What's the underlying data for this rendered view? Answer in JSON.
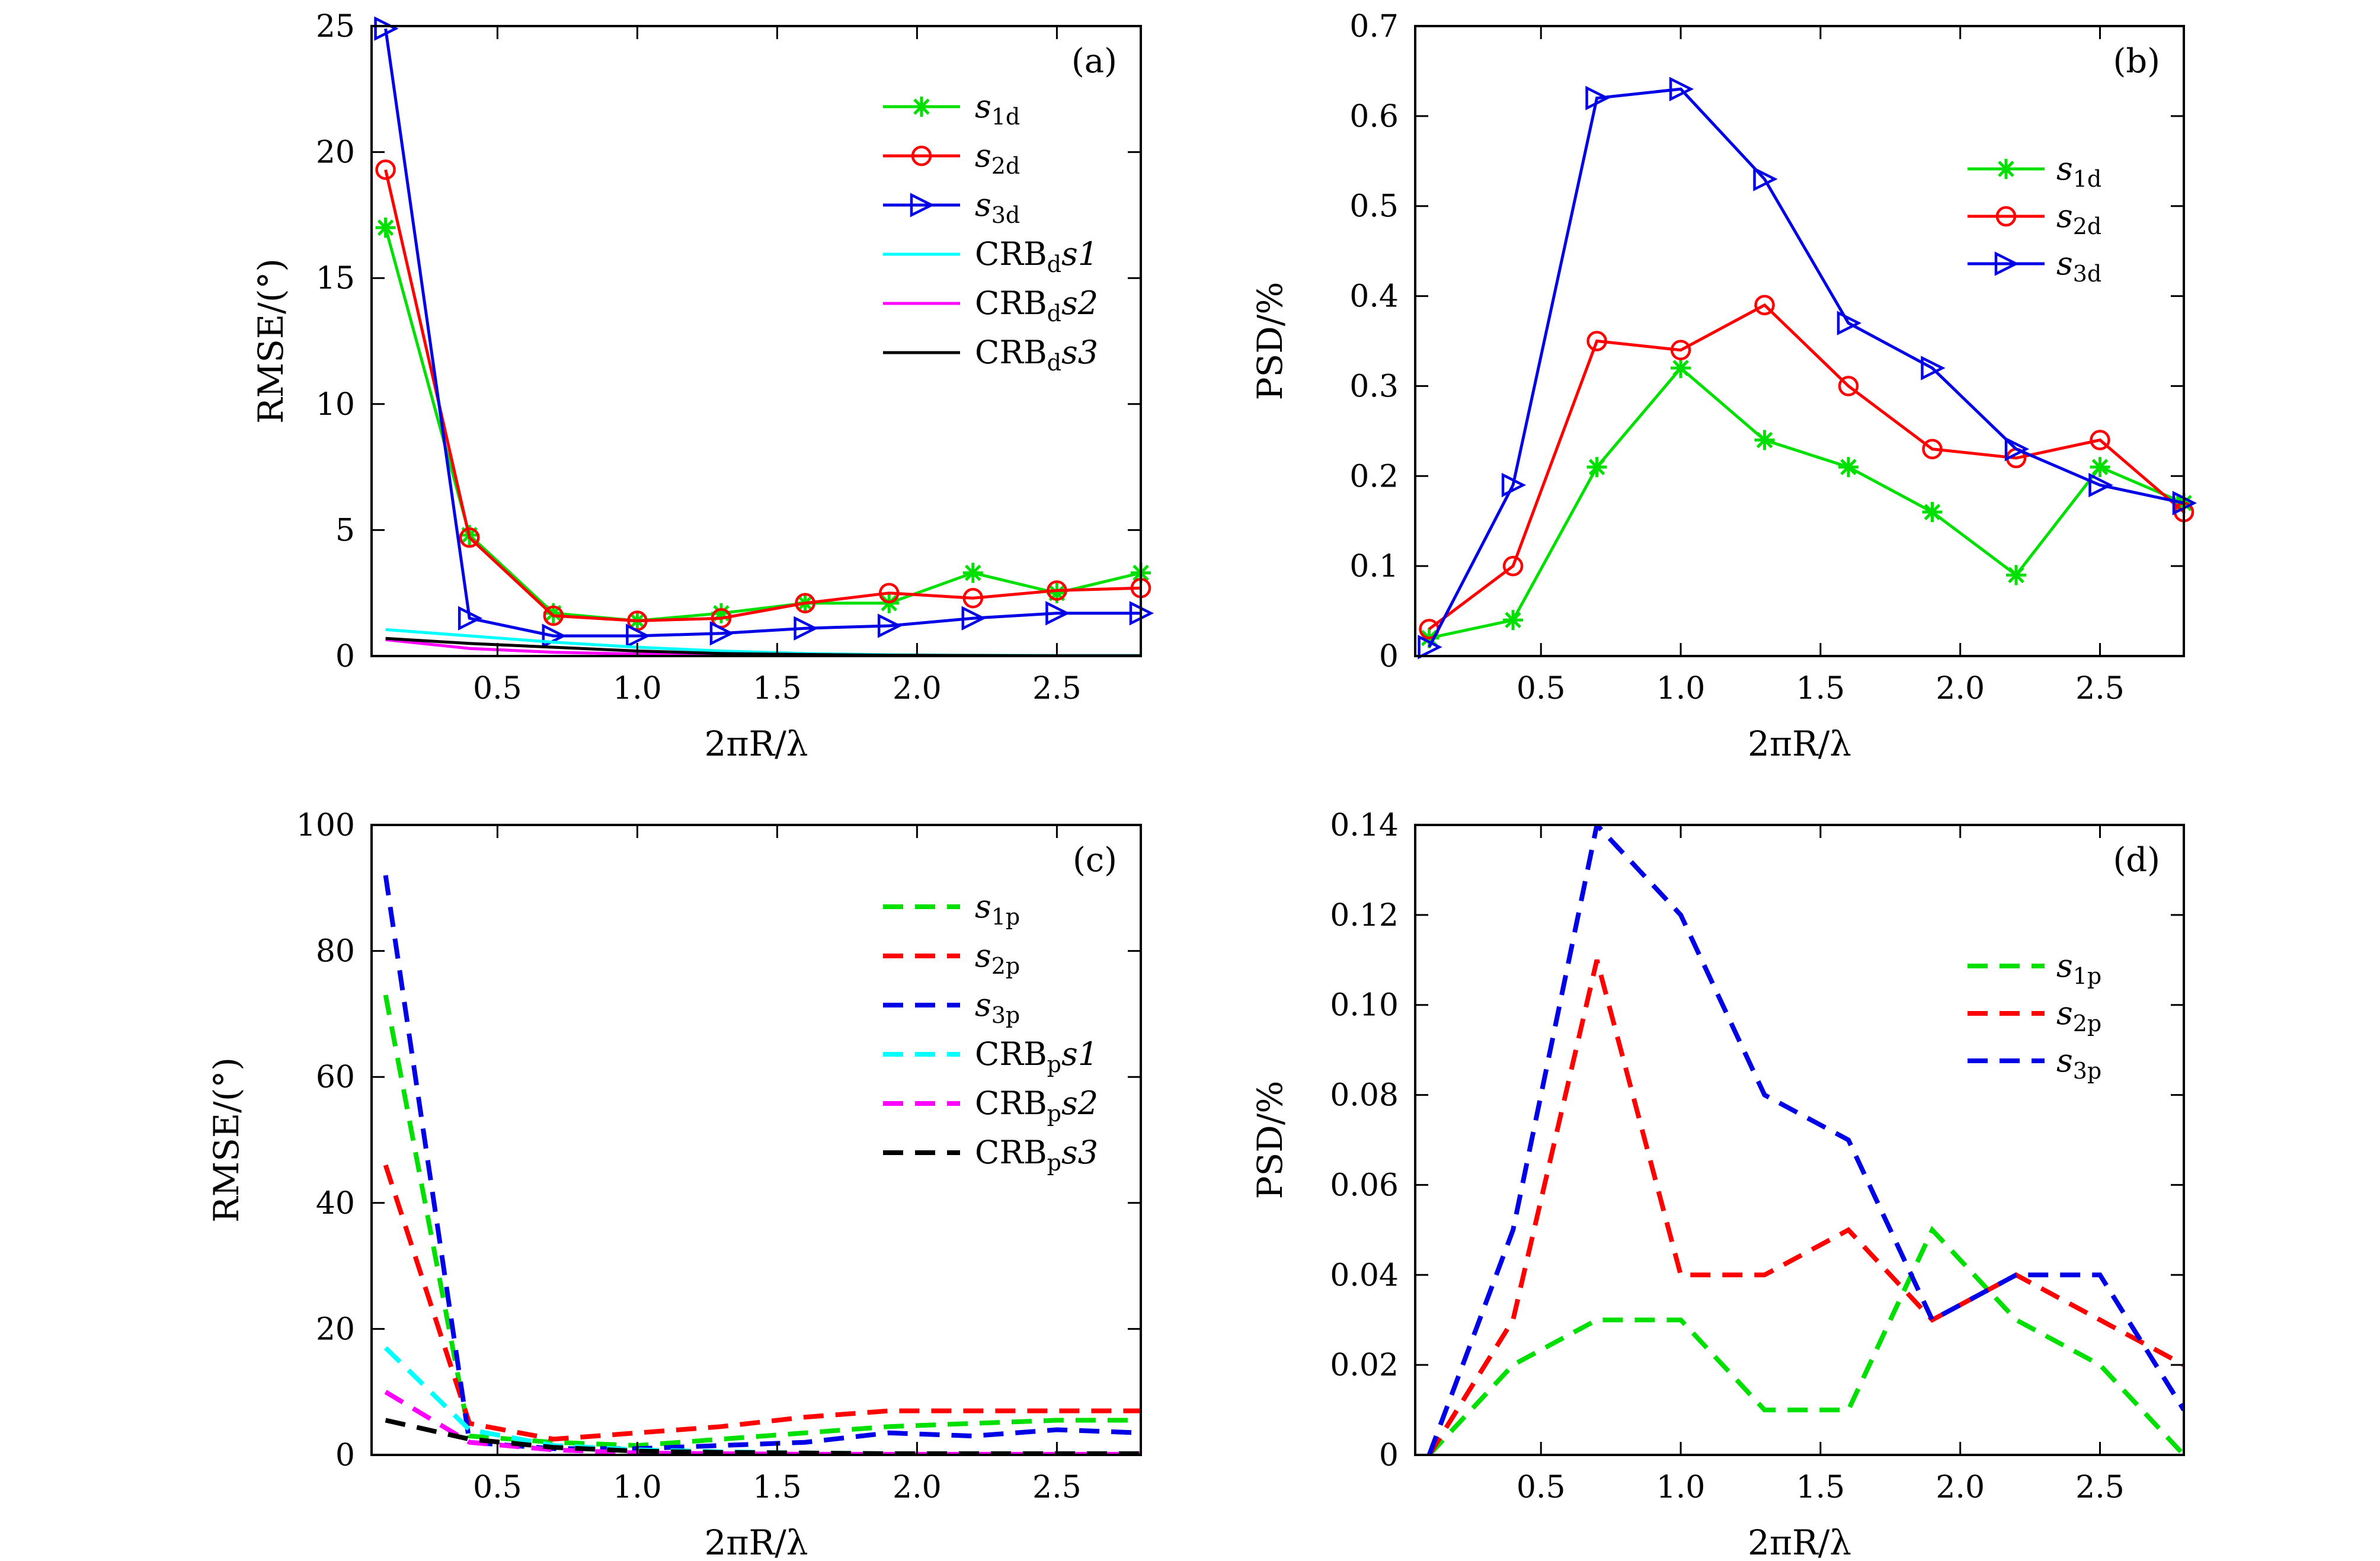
{
  "chart_data": [
    {
      "panel": "(a)",
      "type": "line",
      "xlabel": "2πR/λ",
      "ylabel": "RMSE/(°)",
      "xlim": [
        0.05,
        2.8
      ],
      "ylim": [
        0,
        25
      ],
      "xticks": [
        "0.5",
        "1.0",
        "1.5",
        "2.0",
        "2.5"
      ],
      "xtick_values": [
        0.5,
        1.0,
        1.5,
        2.0,
        2.5
      ],
      "yticks": [
        "0",
        "5",
        "10",
        "15",
        "20",
        "25"
      ],
      "ytick_values": [
        0,
        5,
        10,
        15,
        20,
        25
      ],
      "x": [
        0.1,
        0.4,
        0.7,
        1.0,
        1.3,
        1.6,
        1.9,
        2.2,
        2.5,
        2.8
      ],
      "legend_position": "top-right",
      "series": [
        {
          "name": "s1d",
          "label_main": "s",
          "label_sub": "1d",
          "italic": true,
          "color": "#00e000",
          "marker": "star",
          "dash": false,
          "values": [
            17.0,
            4.8,
            1.7,
            1.4,
            1.7,
            2.1,
            2.1,
            3.3,
            2.5,
            3.3
          ]
        },
        {
          "name": "s2d",
          "label_main": "s",
          "label_sub": "2d",
          "italic": true,
          "color": "#ff0000",
          "marker": "circle",
          "dash": false,
          "values": [
            19.3,
            4.7,
            1.6,
            1.4,
            1.5,
            2.1,
            2.5,
            2.3,
            2.6,
            2.7
          ]
        },
        {
          "name": "s3d",
          "label_main": "s",
          "label_sub": "3d",
          "italic": true,
          "color": "#0000e6",
          "marker": "triangle",
          "dash": false,
          "values": [
            24.9,
            1.5,
            0.8,
            0.8,
            0.9,
            1.1,
            1.2,
            1.5,
            1.7,
            1.7
          ]
        },
        {
          "name": "CRBds1",
          "label_main": "CRB",
          "label_sub": "d",
          "label_tail": "s1",
          "italic": false,
          "color": "#00ffff",
          "marker": "none",
          "dash": false,
          "values": [
            1.05,
            0.8,
            0.55,
            0.35,
            0.2,
            0.1,
            0.05,
            0.03,
            0.02,
            0.02
          ]
        },
        {
          "name": "CRBds2",
          "label_main": "CRB",
          "label_sub": "d",
          "label_tail": "s2",
          "italic": false,
          "color": "#ff00ff",
          "marker": "none",
          "dash": false,
          "values": [
            0.65,
            0.3,
            0.15,
            0.08,
            0.05,
            0.03,
            0.02,
            0.01,
            0.01,
            0.01
          ]
        },
        {
          "name": "CRBds3",
          "label_main": "CRB",
          "label_sub": "d",
          "label_tail": "s3",
          "italic": false,
          "color": "#000000",
          "marker": "none",
          "dash": false,
          "values": [
            0.7,
            0.5,
            0.35,
            0.2,
            0.1,
            0.06,
            0.03,
            0.02,
            0.01,
            0.01
          ]
        }
      ]
    },
    {
      "panel": "(b)",
      "type": "line",
      "xlabel": "2πR/λ",
      "ylabel": "PSD/%",
      "xlim": [
        0.05,
        2.8
      ],
      "ylim": [
        0,
        0.7
      ],
      "xticks": [
        "0.5",
        "1.0",
        "1.5",
        "2.0",
        "2.5"
      ],
      "xtick_values": [
        0.5,
        1.0,
        1.5,
        2.0,
        2.5
      ],
      "yticks": [
        "0",
        "0.1",
        "0.2",
        "0.3",
        "0.4",
        "0.5",
        "0.6",
        "0.7"
      ],
      "ytick_values": [
        0,
        0.1,
        0.2,
        0.3,
        0.4,
        0.5,
        0.6,
        0.7
      ],
      "x": [
        0.1,
        0.4,
        0.7,
        1.0,
        1.3,
        1.6,
        1.9,
        2.2,
        2.5,
        2.8
      ],
      "legend_position": "top-right",
      "series": [
        {
          "name": "s1d",
          "label_main": "s",
          "label_sub": "1d",
          "italic": true,
          "color": "#00e000",
          "marker": "star",
          "dash": false,
          "values": [
            0.02,
            0.04,
            0.21,
            0.32,
            0.24,
            0.21,
            0.16,
            0.09,
            0.21,
            0.17
          ]
        },
        {
          "name": "s2d",
          "label_main": "s",
          "label_sub": "2d",
          "italic": true,
          "color": "#ff0000",
          "marker": "circle",
          "dash": false,
          "values": [
            0.03,
            0.1,
            0.35,
            0.34,
            0.39,
            0.3,
            0.23,
            0.22,
            0.24,
            0.16
          ]
        },
        {
          "name": "s3d",
          "label_main": "s",
          "label_sub": "3d",
          "italic": true,
          "color": "#0000e6",
          "marker": "triangle",
          "dash": false,
          "values": [
            0.01,
            0.19,
            0.62,
            0.63,
            0.53,
            0.37,
            0.32,
            0.23,
            0.19,
            0.17
          ]
        }
      ]
    },
    {
      "panel": "(c)",
      "type": "line",
      "xlabel": "2πR/λ",
      "ylabel": "RMSE/(°)",
      "xlim": [
        0.05,
        2.8
      ],
      "ylim": [
        0,
        100
      ],
      "xticks": [
        "0.5",
        "1.0",
        "1.5",
        "2.0",
        "2.5"
      ],
      "xtick_values": [
        0.5,
        1.0,
        1.5,
        2.0,
        2.5
      ],
      "yticks": [
        "0",
        "20",
        "40",
        "60",
        "80",
        "100"
      ],
      "ytick_values": [
        0,
        20,
        40,
        60,
        80,
        100
      ],
      "x": [
        0.1,
        0.4,
        0.7,
        1.0,
        1.3,
        1.6,
        1.9,
        2.2,
        2.5,
        2.8
      ],
      "legend_position": "top-right",
      "series": [
        {
          "name": "s1p",
          "label_main": "s",
          "label_sub": "1p",
          "italic": true,
          "color": "#00e000",
          "marker": "none",
          "dash": true,
          "values": [
            73,
            3,
            2,
            1.5,
            2.5,
            3.5,
            4.5,
            5,
            5.5,
            5.5
          ]
        },
        {
          "name": "s2p",
          "label_main": "s",
          "label_sub": "2p",
          "italic": true,
          "color": "#ff0000",
          "marker": "none",
          "dash": true,
          "values": [
            46,
            5,
            2.5,
            3.5,
            4.5,
            6,
            7,
            7,
            7,
            7
          ]
        },
        {
          "name": "s3p",
          "label_main": "s",
          "label_sub": "3p",
          "italic": true,
          "color": "#0000e6",
          "marker": "none",
          "dash": true,
          "values": [
            92,
            2,
            1,
            1,
            1.5,
            2,
            3.5,
            3,
            4,
            3.5
          ]
        },
        {
          "name": "CRBps1",
          "label_main": "CRB",
          "label_sub": "p",
          "label_tail": "s1",
          "italic": false,
          "color": "#00ffff",
          "marker": "none",
          "dash": true,
          "values": [
            17,
            4,
            1.5,
            0.8,
            0.5,
            0.3,
            0.2,
            0.2,
            0.2,
            0.2
          ]
        },
        {
          "name": "CRBps2",
          "label_main": "CRB",
          "label_sub": "p",
          "label_tail": "s2",
          "italic": false,
          "color": "#ff00ff",
          "marker": "none",
          "dash": true,
          "values": [
            10,
            2,
            0.8,
            0.3,
            0.2,
            0.1,
            0.1,
            0.1,
            0.1,
            0.1
          ]
        },
        {
          "name": "CRBps3",
          "label_main": "CRB",
          "label_sub": "p",
          "label_tail": "s3",
          "italic": false,
          "color": "#000000",
          "marker": "none",
          "dash": true,
          "values": [
            5.5,
            2.5,
            1.2,
            0.6,
            0.4,
            0.3,
            0.2,
            0.2,
            0.2,
            0.2
          ]
        }
      ]
    },
    {
      "panel": "(d)",
      "type": "line",
      "xlabel": "2πR/λ",
      "ylabel": "PSD/%",
      "xlim": [
        0.05,
        2.8
      ],
      "ylim": [
        0,
        0.14
      ],
      "xticks": [
        "0.5",
        "1.0",
        "1.5",
        "2.0",
        "2.5"
      ],
      "xtick_values": [
        0.5,
        1.0,
        1.5,
        2.0,
        2.5
      ],
      "yticks": [
        "0",
        "0.02",
        "0.04",
        "0.06",
        "0.08",
        "0.10",
        "0.12",
        "0.14"
      ],
      "ytick_values": [
        0,
        0.02,
        0.04,
        0.06,
        0.08,
        0.1,
        0.12,
        0.14
      ],
      "x": [
        0.1,
        0.4,
        0.7,
        1.0,
        1.3,
        1.6,
        1.9,
        2.2,
        2.5,
        2.8
      ],
      "legend_position": "top-right",
      "series": [
        {
          "name": "s1p",
          "label_main": "s",
          "label_sub": "1p",
          "italic": true,
          "color": "#00e000",
          "marker": "none",
          "dash": true,
          "values": [
            0.0,
            0.02,
            0.03,
            0.03,
            0.01,
            0.01,
            0.05,
            0.03,
            0.02,
            0.0
          ]
        },
        {
          "name": "s2p",
          "label_main": "s",
          "label_sub": "2p",
          "italic": true,
          "color": "#ff0000",
          "marker": "none",
          "dash": true,
          "values": [
            0.0,
            0.03,
            0.11,
            0.04,
            0.04,
            0.05,
            0.03,
            0.04,
            0.03,
            0.02
          ]
        },
        {
          "name": "s3p",
          "label_main": "s",
          "label_sub": "3p",
          "italic": true,
          "color": "#0000e6",
          "marker": "none",
          "dash": true,
          "values": [
            0.0,
            0.05,
            0.14,
            0.12,
            0.08,
            0.07,
            0.03,
            0.04,
            0.04,
            0.01
          ]
        }
      ]
    }
  ]
}
